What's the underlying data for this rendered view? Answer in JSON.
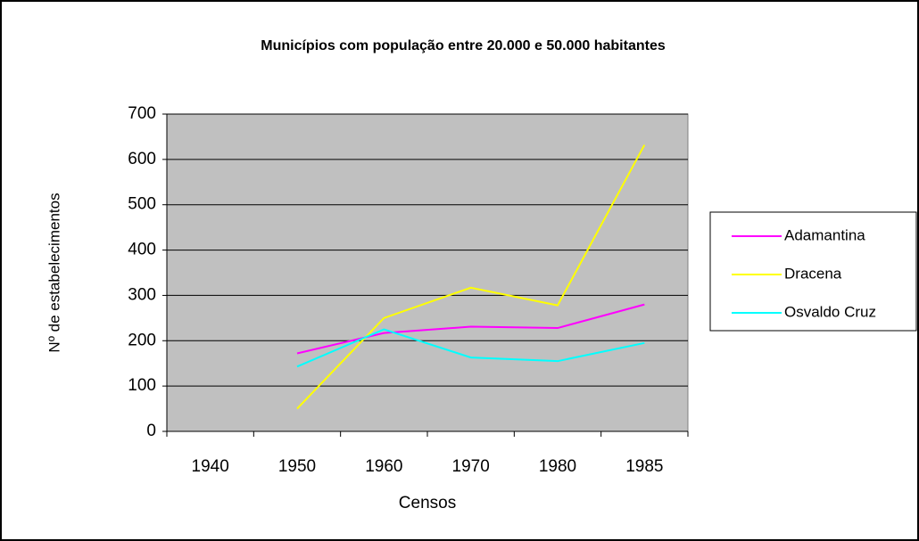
{
  "chart_data": {
    "type": "line",
    "title": "Municípios com população entre 20.000 e 50.000 habitantes",
    "xlabel": "Censos",
    "ylabel": "Nº de estabelecimentos",
    "categories": [
      "1940",
      "1950",
      "1960",
      "1970",
      "1980",
      "1985"
    ],
    "series": [
      {
        "name": "Adamantina",
        "color": "#ff00ff",
        "values": [
          null,
          172,
          217,
          231,
          228,
          280
        ]
      },
      {
        "name": "Dracena",
        "color": "#ffff00",
        "values": [
          null,
          50,
          250,
          317,
          278,
          632
        ]
      },
      {
        "name": "Osvaldo Cruz",
        "color": "#00ffff",
        "values": [
          null,
          143,
          225,
          163,
          155,
          195
        ]
      }
    ],
    "ylim": [
      0,
      700
    ],
    "yticks": [
      0,
      100,
      200,
      300,
      400,
      500,
      600,
      700
    ],
    "grid": true,
    "legend": "right",
    "plot_background": "#c0c0c0"
  }
}
